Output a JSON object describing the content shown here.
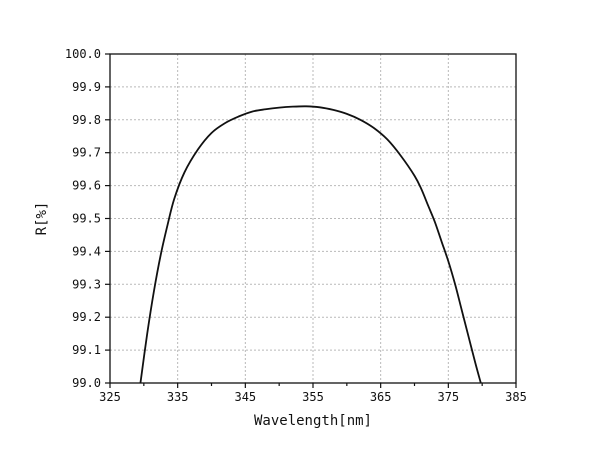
{
  "chart_data": {
    "type": "line",
    "xlabel": "Wavelength[nm]",
    "ylabel": "R[%]",
    "xlim": [
      325,
      385
    ],
    "ylim": [
      99.0,
      100.0
    ],
    "grid": true,
    "x_ticks": [
      325,
      335,
      345,
      355,
      365,
      375,
      385
    ],
    "x_tick_labels": [
      "325",
      "335",
      "345",
      "355",
      "365",
      "375",
      "385"
    ],
    "y_ticks": [
      99.0,
      99.1,
      99.2,
      99.3,
      99.4,
      99.5,
      99.6,
      99.7,
      99.8,
      99.9,
      100.0
    ],
    "y_tick_labels": [
      "99.0",
      "99.1",
      "99.2",
      "99.3",
      "99.4",
      "99.5",
      "99.6",
      "99.7",
      "99.8",
      "99.9",
      "100.0"
    ],
    "series": [
      {
        "x": [
          329.5,
          330.5,
          331.5,
          332.5,
          333.5,
          334.5,
          336,
          338,
          340,
          342,
          344,
          346,
          348,
          350,
          352,
          354,
          356,
          358,
          360,
          362,
          364,
          366,
          368,
          370,
          371,
          372,
          373,
          374,
          375,
          376,
          377,
          378,
          379,
          379.8
        ],
        "values": [
          99.0,
          99.15,
          99.28,
          99.39,
          99.48,
          99.56,
          99.64,
          99.71,
          99.76,
          99.79,
          99.81,
          99.825,
          99.832,
          99.837,
          99.84,
          99.841,
          99.838,
          99.83,
          99.818,
          99.8,
          99.775,
          99.74,
          99.69,
          99.63,
          99.59,
          99.54,
          99.49,
          99.43,
          99.37,
          99.3,
          99.22,
          99.14,
          99.06,
          99.0
        ]
      }
    ]
  }
}
